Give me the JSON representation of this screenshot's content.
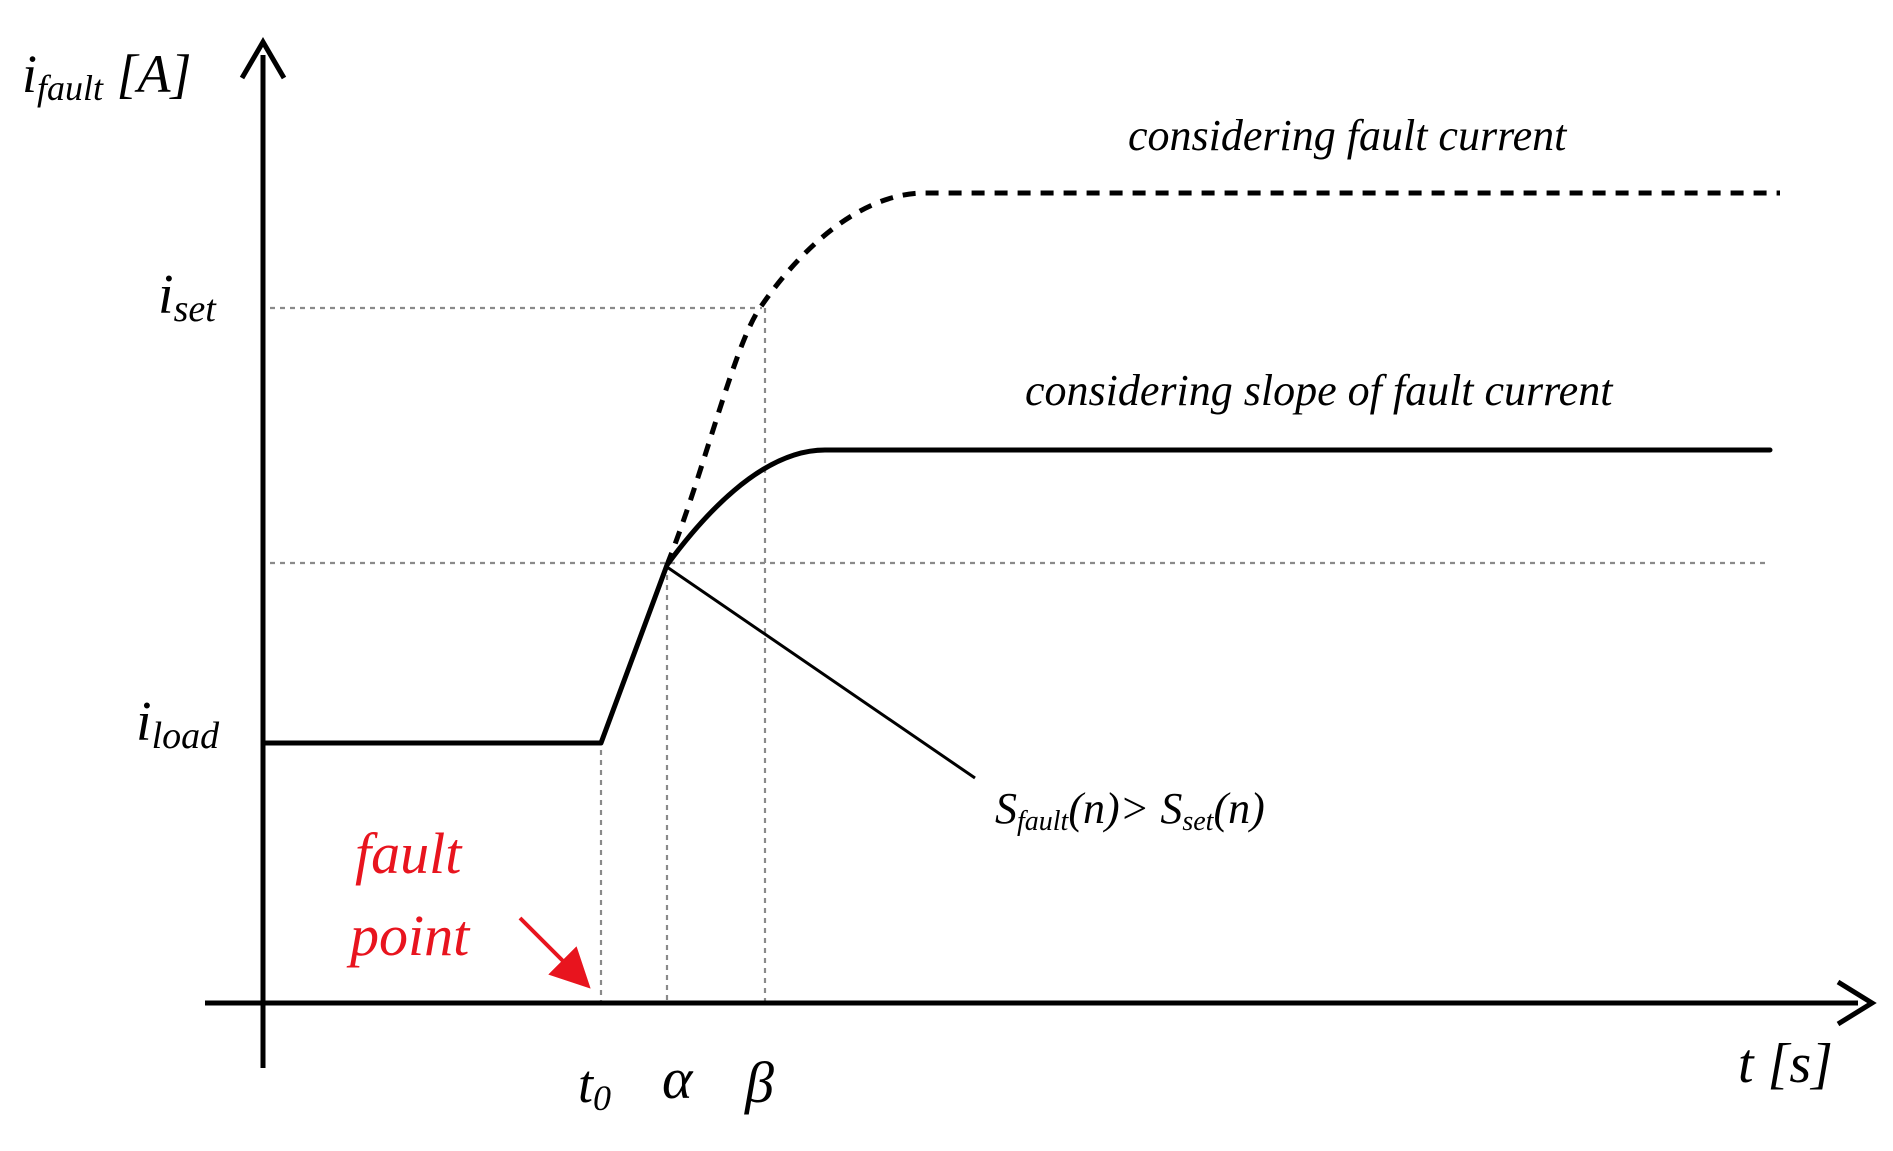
{
  "axes": {
    "y_label_main": "i",
    "y_label_sub": "fault",
    "y_label_unit": " [A]",
    "x_label": "t [s]"
  },
  "levels": {
    "i_set_main": "i",
    "i_set_sub": "set",
    "i_load_main": "i",
    "i_load_sub": "load"
  },
  "time_marks": {
    "t0_main": "t",
    "t0_sub": "0",
    "alpha": "α",
    "beta": "β"
  },
  "curves": {
    "fault_current_label": "considering fault current",
    "slope_label": "considering slope of fault current"
  },
  "annotations": {
    "fault_point_line1": "fault",
    "fault_point_line2": "point",
    "condition_s1": "S",
    "condition_s1_sub": "fault",
    "condition_mid": "(n)> S",
    "condition_s2_sub": "set",
    "condition_end": "(n)"
  },
  "colors": {
    "line": "#000000",
    "guide": "#8a8a8a",
    "fault_point": "#e8141e"
  }
}
